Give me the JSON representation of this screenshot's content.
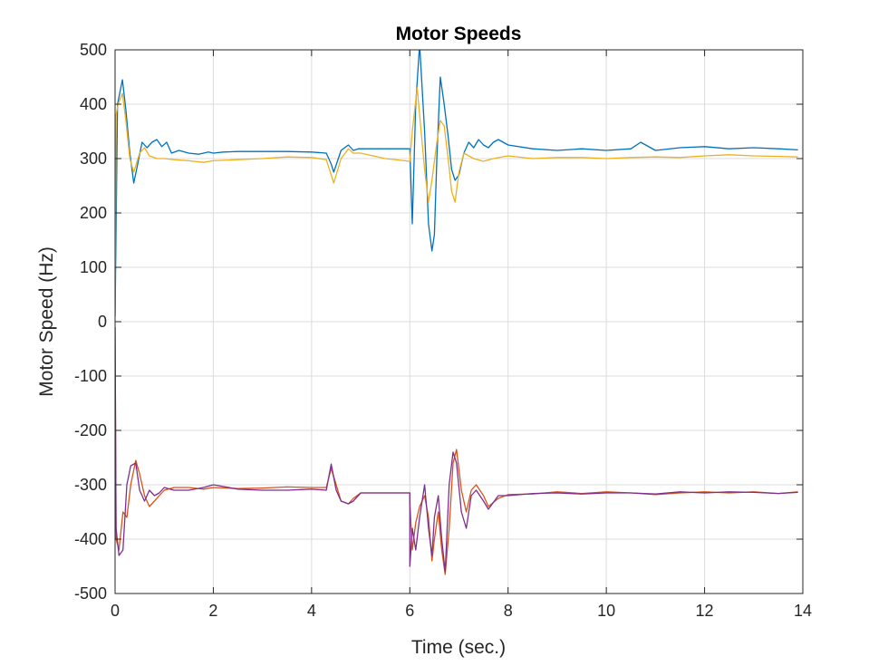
{
  "chart_data": {
    "type": "line",
    "title": "Motor Speeds",
    "xlabel": "Time (sec.)",
    "ylabel": "Motor Speed (Hz)",
    "xlim": [
      0,
      14
    ],
    "ylim": [
      -500,
      500
    ],
    "xticks": [
      0,
      2,
      4,
      6,
      8,
      10,
      12,
      14
    ],
    "yticks": [
      -500,
      -400,
      -300,
      -200,
      -100,
      0,
      100,
      200,
      300,
      400,
      500
    ],
    "grid": true,
    "legend": "none",
    "colors": [
      "#0072BD",
      "#EDB120",
      "#D95319",
      "#7E2F8E"
    ],
    "series": [
      {
        "color": "#0072BD",
        "x": [
          0.0,
          0.05,
          0.15,
          0.22,
          0.3,
          0.38,
          0.45,
          0.55,
          0.65,
          0.75,
          0.85,
          0.95,
          1.05,
          1.15,
          1.3,
          1.5,
          1.7,
          1.9,
          2.0,
          2.2,
          2.5,
          3.0,
          3.5,
          4.0,
          4.3,
          4.4,
          4.45,
          4.6,
          4.75,
          4.85,
          4.95,
          5.0,
          5.5,
          6.0,
          6.0,
          6.05,
          6.12,
          6.2,
          6.3,
          6.38,
          6.45,
          6.5,
          6.55,
          6.62,
          6.7,
          6.78,
          6.85,
          6.92,
          7.0,
          7.1,
          7.2,
          7.3,
          7.4,
          7.5,
          7.6,
          7.7,
          7.8,
          8.0,
          8.5,
          9.0,
          9.5,
          10.0,
          10.5,
          10.7,
          11.0,
          11.5,
          12.0,
          12.5,
          13.0,
          13.5,
          13.9
        ],
        "y": [
          10,
          400,
          445,
          390,
          310,
          255,
          285,
          330,
          320,
          330,
          335,
          322,
          330,
          310,
          315,
          310,
          308,
          312,
          310,
          312,
          313,
          313,
          313,
          312,
          310,
          290,
          275,
          315,
          325,
          315,
          318,
          318,
          318,
          318,
          318,
          180,
          400,
          510,
          350,
          180,
          130,
          160,
          300,
          450,
          400,
          340,
          280,
          260,
          270,
          310,
          330,
          320,
          335,
          325,
          320,
          330,
          335,
          325,
          318,
          315,
          318,
          315,
          318,
          330,
          315,
          320,
          322,
          318,
          320,
          318,
          316
        ]
      },
      {
        "color": "#EDB120",
        "x": [
          0.0,
          0.02,
          0.06,
          0.15,
          0.22,
          0.3,
          0.38,
          0.5,
          0.6,
          0.7,
          0.85,
          1.0,
          1.2,
          1.5,
          1.8,
          2.0,
          2.5,
          3.0,
          3.5,
          4.0,
          4.3,
          4.4,
          4.45,
          4.6,
          4.75,
          4.85,
          5.0,
          5.5,
          6.0,
          6.05,
          6.15,
          6.22,
          6.3,
          6.38,
          6.45,
          6.55,
          6.62,
          6.7,
          6.78,
          6.85,
          6.92,
          7.0,
          7.1,
          7.2,
          7.3,
          7.5,
          7.7,
          8.0,
          8.5,
          9.0,
          9.5,
          10.0,
          10.5,
          11.0,
          11.5,
          12.0,
          12.5,
          13.0,
          13.5,
          13.9
        ],
        "y": [
          10,
          380,
          400,
          420,
          370,
          300,
          275,
          310,
          320,
          305,
          300,
          300,
          298,
          296,
          293,
          296,
          298,
          300,
          303,
          302,
          298,
          270,
          255,
          300,
          318,
          310,
          310,
          300,
          295,
          350,
          430,
          360,
          280,
          220,
          260,
          330,
          370,
          360,
          300,
          240,
          220,
          275,
          310,
          305,
          300,
          295,
          300,
          305,
          300,
          302,
          302,
          300,
          302,
          303,
          302,
          305,
          307,
          305,
          304,
          303
        ]
      },
      {
        "color": "#D95319",
        "x": [
          0.0,
          0.02,
          0.08,
          0.16,
          0.24,
          0.32,
          0.42,
          0.5,
          0.6,
          0.7,
          0.8,
          0.9,
          1.0,
          1.2,
          1.5,
          1.8,
          2.0,
          2.5,
          3.0,
          3.5,
          4.0,
          4.3,
          4.4,
          4.5,
          4.6,
          4.75,
          4.85,
          5.0,
          5.5,
          6.0,
          6.0,
          6.05,
          6.12,
          6.2,
          6.3,
          6.38,
          6.45,
          6.5,
          6.58,
          6.65,
          6.72,
          6.8,
          6.88,
          6.95,
          7.05,
          7.15,
          7.25,
          7.35,
          7.5,
          7.6,
          7.8,
          8.0,
          8.5,
          9.0,
          9.5,
          10.0,
          10.5,
          11.0,
          11.5,
          12.0,
          12.5,
          13.0,
          13.5,
          13.9
        ],
        "y": [
          -10,
          -400,
          -420,
          -350,
          -360,
          -300,
          -255,
          -280,
          -320,
          -340,
          -330,
          -320,
          -310,
          -305,
          -305,
          -308,
          -305,
          -307,
          -306,
          -304,
          -305,
          -305,
          -270,
          -300,
          -330,
          -335,
          -325,
          -315,
          -315,
          -315,
          -330,
          -420,
          -370,
          -340,
          -320,
          -360,
          -440,
          -400,
          -350,
          -420,
          -465,
          -380,
          -260,
          -235,
          -310,
          -350,
          -310,
          -300,
          -320,
          -340,
          -325,
          -318,
          -317,
          -313,
          -316,
          -313,
          -315,
          -318,
          -315,
          -313,
          -315,
          -313,
          -316,
          -313
        ]
      },
      {
        "color": "#7E2F8E",
        "x": [
          0.0,
          0.02,
          0.08,
          0.16,
          0.24,
          0.32,
          0.42,
          0.5,
          0.6,
          0.7,
          0.8,
          0.9,
          1.0,
          1.2,
          1.5,
          1.8,
          2.0,
          2.5,
          3.0,
          3.5,
          4.0,
          4.3,
          4.4,
          4.5,
          4.6,
          4.75,
          4.85,
          5.0,
          5.5,
          6.0,
          6.0,
          6.05,
          6.12,
          6.2,
          6.3,
          6.38,
          6.45,
          6.5,
          6.58,
          6.65,
          6.72,
          6.8,
          6.88,
          6.95,
          7.05,
          7.15,
          7.25,
          7.35,
          7.5,
          7.6,
          7.8,
          8.0,
          8.5,
          9.0,
          9.5,
          10.0,
          10.5,
          11.0,
          11.5,
          12.0,
          12.5,
          13.0,
          13.5,
          13.9
        ],
        "y": [
          -10,
          -380,
          -430,
          -420,
          -300,
          -265,
          -260,
          -310,
          -330,
          -310,
          -320,
          -315,
          -305,
          -310,
          -310,
          -305,
          -300,
          -308,
          -310,
          -310,
          -308,
          -310,
          -262,
          -310,
          -330,
          -335,
          -330,
          -315,
          -315,
          -315,
          -450,
          -380,
          -420,
          -360,
          -300,
          -380,
          -430,
          -360,
          -320,
          -400,
          -460,
          -300,
          -240,
          -260,
          -350,
          -380,
          -320,
          -310,
          -330,
          -345,
          -320,
          -320,
          -316,
          -315,
          -317,
          -315,
          -315,
          -317,
          -313,
          -315,
          -313,
          -314,
          -316,
          -314
        ]
      }
    ]
  }
}
